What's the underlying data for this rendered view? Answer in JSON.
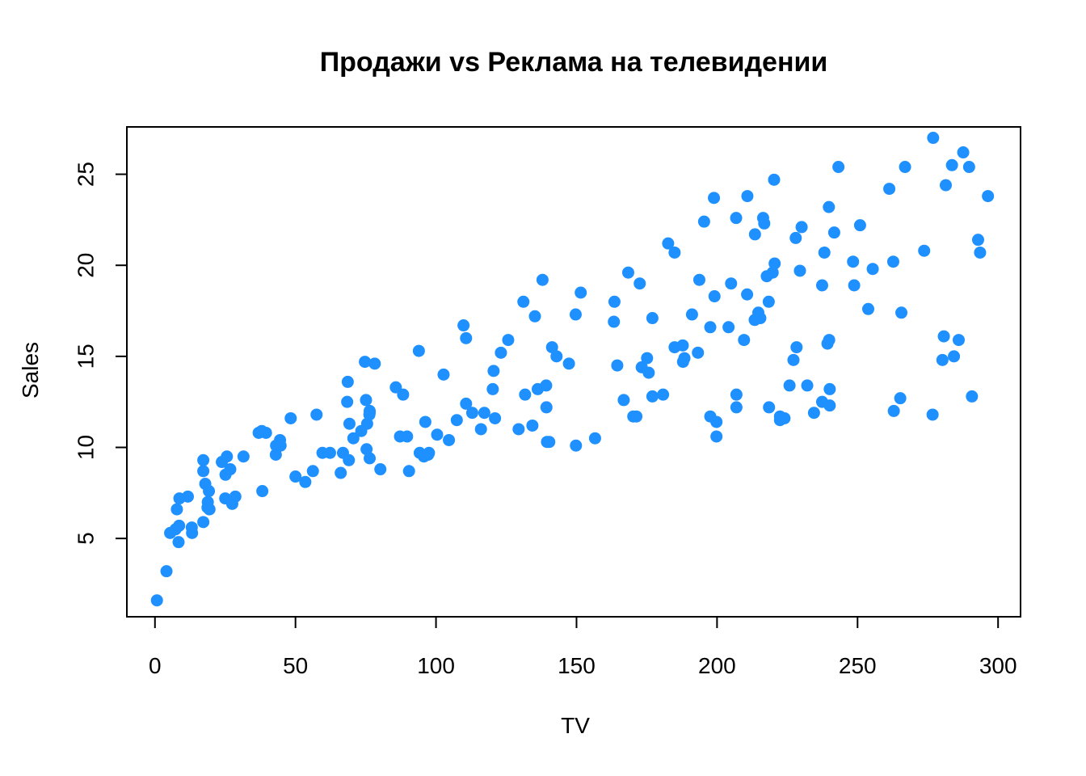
{
  "chart_data": {
    "type": "scatter",
    "title": "Продажи vs Реклама на телевидении",
    "xlabel": "TV",
    "ylabel": "Sales",
    "xlim": [
      -10,
      308
    ],
    "ylim": [
      0.7,
      27.6
    ],
    "x_ticks": [
      "0",
      "50",
      "100",
      "150",
      "200",
      "250",
      "300"
    ],
    "y_ticks": [
      "5",
      "10",
      "15",
      "20",
      "25"
    ],
    "grid": false,
    "point_color": "#1E90FF",
    "points": [
      [
        0.7,
        1.6
      ],
      [
        4.1,
        3.2
      ],
      [
        5.4,
        5.3
      ],
      [
        7.3,
        5.5
      ],
      [
        7.8,
        6.6
      ],
      [
        8.4,
        4.8
      ],
      [
        8.6,
        5.7
      ],
      [
        8.7,
        7.2
      ],
      [
        11.7,
        7.3
      ],
      [
        13.1,
        5.6
      ],
      [
        13.2,
        5.3
      ],
      [
        17.2,
        5.9
      ],
      [
        17.2,
        8.7
      ],
      [
        17.2,
        9.3
      ],
      [
        17.9,
        8.0
      ],
      [
        18.7,
        6.7
      ],
      [
        18.8,
        7.0
      ],
      [
        19.2,
        7.6
      ],
      [
        19.4,
        6.6
      ],
      [
        23.8,
        9.2
      ],
      [
        25.0,
        7.2
      ],
      [
        25.1,
        8.5
      ],
      [
        25.6,
        9.5
      ],
      [
        26.8,
        8.8
      ],
      [
        27.5,
        6.9
      ],
      [
        28.6,
        7.3
      ],
      [
        31.5,
        9.5
      ],
      [
        36.9,
        10.8
      ],
      [
        38.0,
        10.9
      ],
      [
        38.2,
        7.6
      ],
      [
        39.5,
        10.8
      ],
      [
        43.0,
        9.6
      ],
      [
        43.1,
        10.1
      ],
      [
        44.5,
        10.4
      ],
      [
        44.7,
        10.1
      ],
      [
        48.3,
        11.6
      ],
      [
        50.0,
        8.4
      ],
      [
        53.5,
        8.1
      ],
      [
        56.2,
        8.7
      ],
      [
        57.5,
        11.8
      ],
      [
        59.6,
        9.7
      ],
      [
        62.3,
        9.7
      ],
      [
        66.1,
        8.6
      ],
      [
        66.9,
        9.7
      ],
      [
        68.4,
        12.5
      ],
      [
        68.6,
        13.6
      ],
      [
        69.0,
        9.3
      ],
      [
        69.2,
        11.3
      ],
      [
        70.6,
        10.5
      ],
      [
        73.4,
        10.9
      ],
      [
        74.7,
        14.7
      ],
      [
        75.1,
        12.6
      ],
      [
        75.3,
        9.9
      ],
      [
        75.5,
        11.3
      ],
      [
        76.3,
        11.8
      ],
      [
        76.4,
        11.9
      ],
      [
        76.4,
        12.0
      ],
      [
        76.4,
        9.4
      ],
      [
        78.2,
        14.6
      ],
      [
        80.2,
        8.8
      ],
      [
        85.7,
        13.3
      ],
      [
        87.2,
        10.6
      ],
      [
        88.3,
        12.9
      ],
      [
        89.7,
        10.6
      ],
      [
        90.4,
        8.7
      ],
      [
        93.9,
        15.3
      ],
      [
        94.2,
        9.7
      ],
      [
        95.7,
        9.5
      ],
      [
        96.2,
        11.4
      ],
      [
        97.2,
        9.6
      ],
      [
        97.5,
        9.7
      ],
      [
        100.4,
        10.7
      ],
      [
        102.7,
        14.0
      ],
      [
        104.6,
        10.4
      ],
      [
        107.4,
        11.5
      ],
      [
        109.8,
        16.7
      ],
      [
        110.7,
        12.4
      ],
      [
        110.7,
        16.0
      ],
      [
        112.9,
        11.9
      ],
      [
        116.0,
        11.0
      ],
      [
        117.2,
        11.9
      ],
      [
        120.2,
        13.2
      ],
      [
        120.5,
        14.2
      ],
      [
        121.0,
        11.6
      ],
      [
        123.1,
        15.2
      ],
      [
        125.7,
        15.9
      ],
      [
        129.4,
        11.0
      ],
      [
        131.1,
        18.0
      ],
      [
        131.7,
        12.9
      ],
      [
        134.3,
        11.2
      ],
      [
        135.2,
        17.2
      ],
      [
        136.2,
        13.2
      ],
      [
        137.9,
        19.2
      ],
      [
        139.2,
        13.4
      ],
      [
        139.3,
        12.2
      ],
      [
        139.5,
        10.3
      ],
      [
        140.3,
        10.3
      ],
      [
        141.3,
        15.5
      ],
      [
        142.9,
        15.0
      ],
      [
        147.3,
        14.6
      ],
      [
        149.7,
        17.3
      ],
      [
        149.8,
        10.1
      ],
      [
        151.5,
        18.5
      ],
      [
        156.6,
        10.5
      ],
      [
        163.3,
        16.9
      ],
      [
        163.5,
        18.0
      ],
      [
        164.5,
        14.5
      ],
      [
        166.8,
        12.6
      ],
      [
        168.4,
        19.6
      ],
      [
        170.2,
        11.7
      ],
      [
        171.3,
        11.7
      ],
      [
        172.5,
        19.0
      ],
      [
        173.2,
        14.4
      ],
      [
        175.1,
        14.9
      ],
      [
        175.7,
        14.1
      ],
      [
        177.0,
        17.1
      ],
      [
        177.0,
        12.8
      ],
      [
        180.8,
        12.9
      ],
      [
        182.6,
        21.2
      ],
      [
        184.9,
        15.5
      ],
      [
        184.9,
        20.7
      ],
      [
        187.8,
        15.6
      ],
      [
        187.9,
        14.7
      ],
      [
        188.4,
        14.9
      ],
      [
        191.1,
        17.3
      ],
      [
        193.2,
        15.2
      ],
      [
        193.7,
        19.2
      ],
      [
        195.4,
        22.4
      ],
      [
        197.6,
        16.6
      ],
      [
        197.6,
        11.7
      ],
      [
        198.9,
        23.7
      ],
      [
        199.1,
        18.3
      ],
      [
        199.8,
        10.6
      ],
      [
        199.8,
        11.4
      ],
      [
        204.1,
        16.6
      ],
      [
        205.0,
        19.0
      ],
      [
        206.8,
        22.6
      ],
      [
        206.9,
        12.2
      ],
      [
        206.9,
        12.9
      ],
      [
        209.6,
        15.9
      ],
      [
        210.7,
        18.4
      ],
      [
        210.8,
        23.8
      ],
      [
        213.4,
        17.0
      ],
      [
        213.5,
        21.7
      ],
      [
        214.7,
        17.4
      ],
      [
        215.4,
        17.1
      ],
      [
        216.4,
        22.6
      ],
      [
        216.8,
        22.3
      ],
      [
        217.7,
        19.4
      ],
      [
        218.4,
        18.0
      ],
      [
        218.5,
        12.2
      ],
      [
        219.8,
        19.6
      ],
      [
        220.3,
        24.7
      ],
      [
        220.5,
        20.1
      ],
      [
        222.4,
        11.7
      ],
      [
        222.4,
        11.5
      ],
      [
        224.0,
        11.6
      ],
      [
        225.8,
        13.4
      ],
      [
        227.2,
        14.8
      ],
      [
        228.0,
        21.5
      ],
      [
        228.3,
        15.5
      ],
      [
        229.5,
        19.7
      ],
      [
        230.1,
        22.1
      ],
      [
        232.1,
        13.4
      ],
      [
        234.5,
        11.9
      ],
      [
        237.4,
        12.5
      ],
      [
        237.4,
        18.9
      ],
      [
        238.2,
        20.7
      ],
      [
        239.3,
        15.7
      ],
      [
        239.8,
        23.2
      ],
      [
        239.9,
        15.9
      ],
      [
        240.1,
        13.2
      ],
      [
        240.1,
        12.3
      ],
      [
        241.7,
        21.8
      ],
      [
        243.2,
        25.4
      ],
      [
        248.4,
        20.2
      ],
      [
        248.8,
        18.9
      ],
      [
        250.9,
        22.2
      ],
      [
        253.8,
        17.6
      ],
      [
        255.4,
        19.8
      ],
      [
        261.3,
        24.2
      ],
      [
        262.7,
        20.2
      ],
      [
        262.9,
        12.0
      ],
      [
        265.2,
        12.7
      ],
      [
        265.6,
        17.4
      ],
      [
        266.9,
        25.4
      ],
      [
        273.7,
        20.8
      ],
      [
        276.7,
        11.8
      ],
      [
        276.9,
        27.0
      ],
      [
        280.2,
        14.8
      ],
      [
        280.7,
        16.1
      ],
      [
        281.4,
        24.4
      ],
      [
        283.6,
        25.5
      ],
      [
        284.3,
        15.0
      ],
      [
        286.0,
        15.9
      ],
      [
        287.6,
        26.2
      ],
      [
        289.7,
        25.4
      ],
      [
        290.7,
        12.8
      ],
      [
        292.9,
        21.4
      ],
      [
        293.6,
        20.7
      ],
      [
        296.4,
        23.8
      ]
    ]
  }
}
